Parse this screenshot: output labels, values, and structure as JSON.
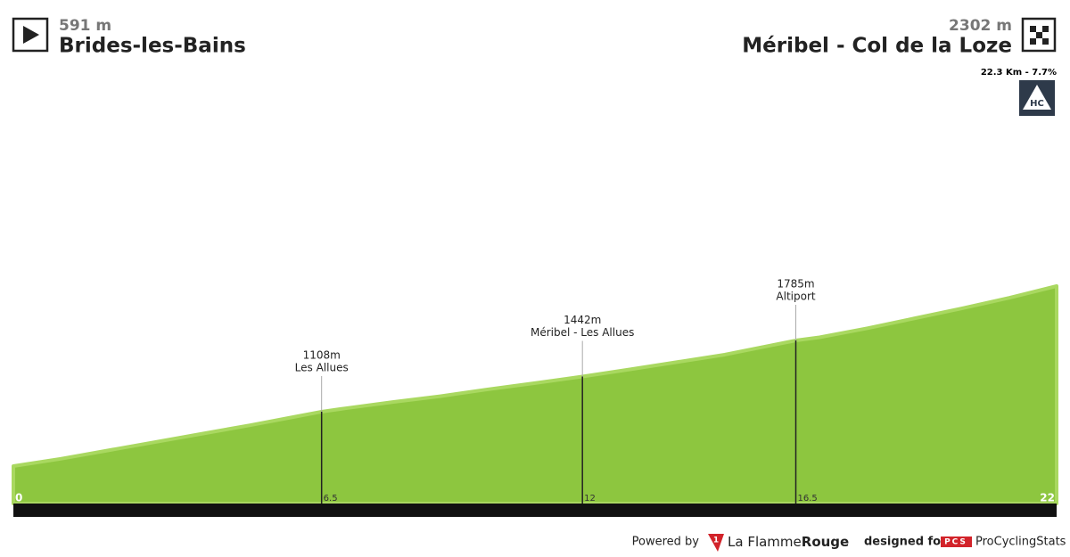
{
  "chart_data": {
    "type": "area",
    "start": {
      "elevation_label": "591 m",
      "name": "Brides-les-Bains"
    },
    "finish": {
      "elevation_label": "2302 m",
      "name": "Méribel - Col de la Loze"
    },
    "climb": {
      "info": "22.3 Km - 7.7%",
      "category": "HC"
    },
    "x": [
      0,
      1,
      2,
      3,
      4,
      5,
      6,
      6.5,
      7,
      8,
      9,
      10,
      11,
      12,
      13,
      14,
      15,
      16,
      16.5,
      17,
      18,
      19,
      20,
      21,
      22
    ],
    "values": [
      591,
      660,
      740,
      820,
      900,
      980,
      1065,
      1108,
      1140,
      1200,
      1255,
      1320,
      1380,
      1442,
      1510,
      1580,
      1650,
      1740,
      1785,
      1815,
      1900,
      1995,
      2090,
      2190,
      2302
    ],
    "color": "#8dc63f",
    "xlim": [
      0,
      22
    ],
    "ylim": [
      235,
      2302
    ],
    "xticks": [
      0,
      6.5,
      12,
      16.5,
      22
    ],
    "waypoints": [
      {
        "km": 6.5,
        "elevation": 1108,
        "elevation_label": "1108m",
        "name": "Les Allues"
      },
      {
        "km": 12,
        "elevation": 1442,
        "elevation_label": "1442m",
        "name": "Méribel - Les Allues"
      },
      {
        "km": 16.5,
        "elevation": 1785,
        "elevation_label": "1785m",
        "name": "Altiport"
      }
    ]
  },
  "footer": {
    "powered": "Powered by",
    "brand_number": "1",
    "brand_a": "La Flamme",
    "brand_b": "Rouge",
    "designed": "designed for",
    "pcs": "PCS",
    "site": "ProCyclingStats"
  }
}
